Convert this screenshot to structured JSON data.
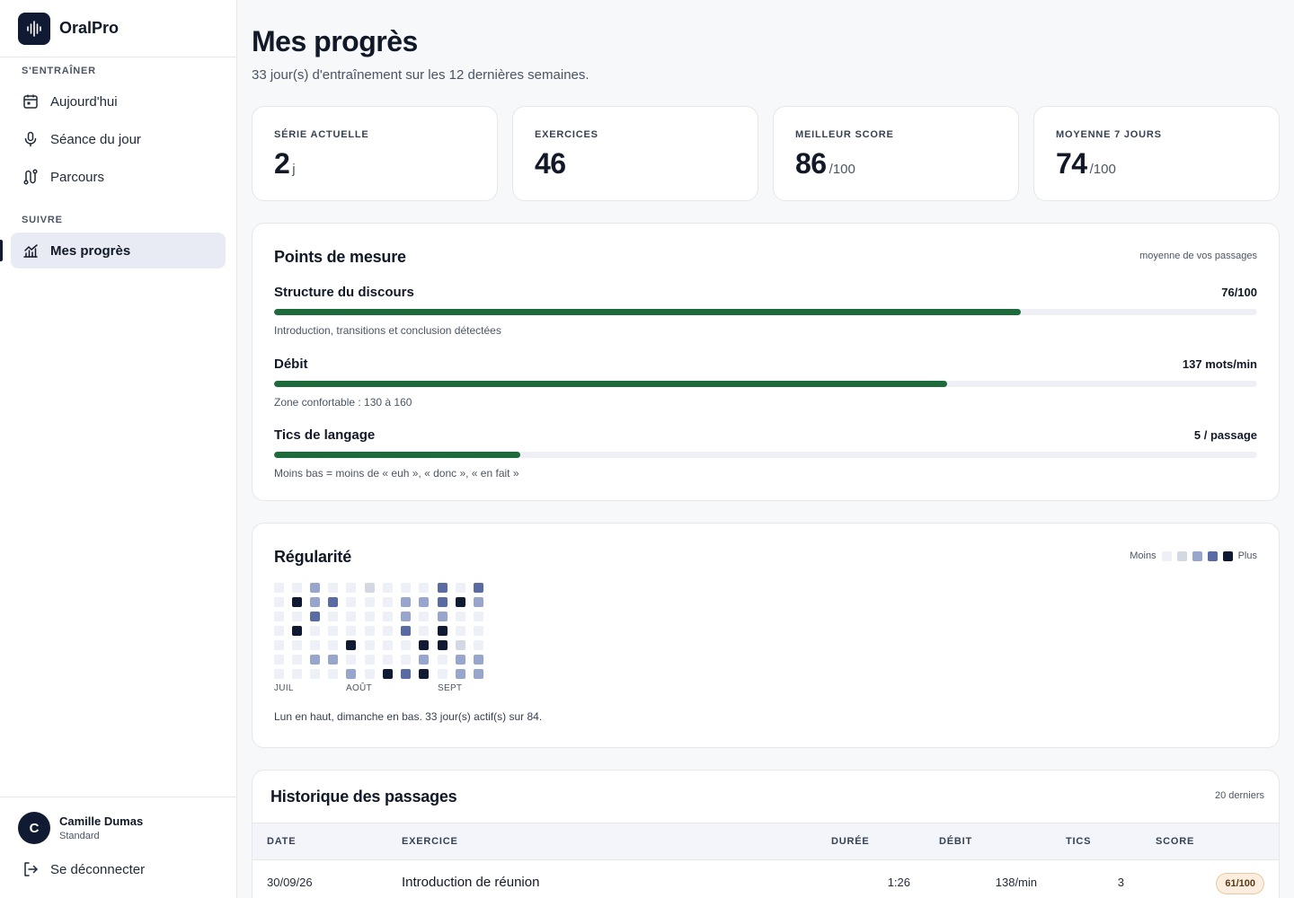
{
  "brand": {
    "name": "OralPro",
    "logo_icon": "waveform-icon"
  },
  "sidebar": {
    "sections": [
      {
        "title": "S'ENTRAÎNER",
        "items": [
          {
            "label": "Aujourd'hui",
            "icon": "calendar-icon"
          },
          {
            "label": "Séance du jour",
            "icon": "microphone-icon"
          },
          {
            "label": "Parcours",
            "icon": "route-icon"
          }
        ]
      },
      {
        "title": "SUIVRE",
        "items": [
          {
            "label": "Mes progrès",
            "icon": "chart-icon",
            "active": true
          }
        ]
      }
    ],
    "user": {
      "initial": "C",
      "name": "Camille Dumas",
      "plan": "Standard"
    },
    "logout_label": "Se déconnecter"
  },
  "page": {
    "title": "Mes progrès",
    "subtitle": "33 jour(s) d'entraînement sur les 12 dernières semaines."
  },
  "stats": [
    {
      "label": "SÉRIE ACTUELLE",
      "value": "2",
      "unit": "j"
    },
    {
      "label": "EXERCICES",
      "value": "46",
      "unit": ""
    },
    {
      "label": "MEILLEUR SCORE",
      "value": "86",
      "unit": "/100"
    },
    {
      "label": "MOYENNE 7 JOURS",
      "value": "74",
      "unit": "/100"
    }
  ],
  "metrics": {
    "title": "Points de mesure",
    "note": "moyenne de vos passages",
    "items": [
      {
        "label": "Structure du discours",
        "value": "76/100",
        "fill": 0.76,
        "help": "Introduction, transitions et conclusion détectées"
      },
      {
        "label": "Débit",
        "value": "137 mots/min",
        "fill": 0.685,
        "help": "Zone confortable : 130 à 160"
      },
      {
        "label": "Tics de langage",
        "value": "5 / passage",
        "fill": 0.25,
        "help": "Moins bas = moins de « euh », « donc », « en fait »"
      }
    ]
  },
  "regularity": {
    "title": "Régularité",
    "legend_less": "Moins",
    "legend_more": "Plus",
    "colors": [
      "#eef0f8",
      "#d4d8e3",
      "#98a5cc",
      "#5a6ba3",
      "#111a33"
    ],
    "months": [
      {
        "label": "JUIL",
        "week": 0
      },
      {
        "label": "AOÛT",
        "week": 4
      },
      {
        "label": "SEPT",
        "week": 9
      }
    ],
    "weeks": [
      [
        0,
        0,
        0,
        0,
        0,
        0,
        0
      ],
      [
        0,
        4,
        0,
        4,
        0,
        0,
        0
      ],
      [
        2,
        2,
        3,
        0,
        0,
        2,
        0
      ],
      [
        0,
        3,
        0,
        0,
        0,
        2,
        0
      ],
      [
        0,
        0,
        0,
        0,
        4,
        0,
        2
      ],
      null,
      [
        1,
        0,
        0,
        0,
        0,
        0,
        0
      ],
      [
        0,
        0,
        0,
        0,
        0,
        0,
        4
      ],
      [
        0,
        2,
        2,
        3,
        0,
        0,
        3
      ],
      [
        0,
        2,
        0,
        0,
        4,
        2,
        4
      ],
      null,
      [
        3,
        3,
        2,
        4,
        4,
        0,
        0
      ],
      [
        0,
        4,
        0,
        0,
        1,
        2,
        2
      ],
      [
        3,
        2,
        0,
        0,
        0,
        2,
        2
      ]
    ],
    "caption": "Lun en haut, dimanche en bas. 33 jour(s) actif(s) sur 84."
  },
  "history": {
    "title": "Historique des passages",
    "note": "20 derniers",
    "columns": [
      "DATE",
      "EXERCICE",
      "DURÉE",
      "DÉBIT",
      "TICS",
      "SCORE"
    ],
    "rows": [
      {
        "date": "30/09/26",
        "exercise": "Introduction de réunion",
        "duration": "1:26",
        "rate": "138/min",
        "tics": "3",
        "score": "61/100"
      }
    ]
  }
}
